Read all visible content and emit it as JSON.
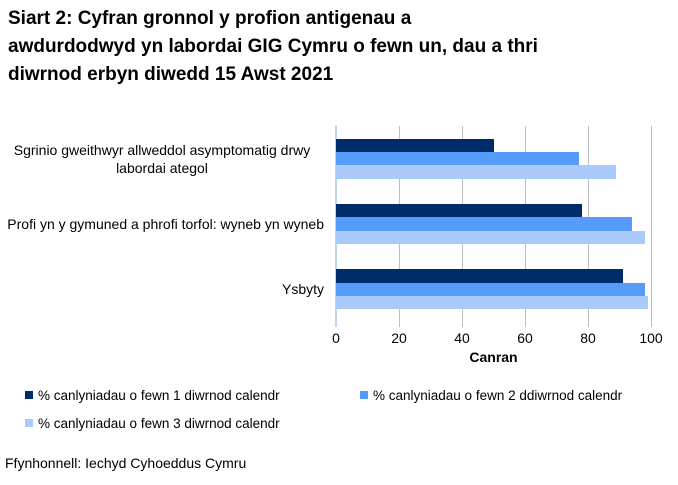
{
  "title": "Siart 2: Cyfran gronnol y profion antigenau a awdurdodwyd yn labordai GIG Cymru o fewn un, dau a thri diwrnod erbyn diwedd 15 Awst 2021",
  "source": "Ffynhonnell: Iechyd Cyhoeddus Cymru",
  "chart_data": {
    "type": "bar",
    "orientation": "horizontal",
    "title": "Siart 2: Cyfran gronnol y profion antigenau a awdurdodwyd yn labordai GIG Cymru o fewn un, dau a thri diwrnod erbyn diwedd 15 Awst 2021",
    "categories": [
      "Sgrinio gweithwyr allweddol asymptomatig drwy labordai ategol",
      "Profi yn y gymuned a phrofi torfol: wyneb yn wyneb",
      "Ysbyty"
    ],
    "series": [
      {
        "name": "% canlyniadau o fewn 1 diwrnod calendr",
        "color": "#002d6a",
        "values": [
          50,
          78,
          91
        ]
      },
      {
        "name": "% canlyniadau o fewn 2 ddiwrnod calendr",
        "color": "#559bfa",
        "values": [
          77,
          94,
          98
        ]
      },
      {
        "name": "% canlyniadau o fewn 3 diwrnod calendr",
        "color": "#aacbfa",
        "values": [
          89,
          98,
          99
        ]
      }
    ],
    "xlabel": "Canran",
    "ylabel": "",
    "xlim": [
      0,
      100
    ],
    "xticks": [
      0,
      20,
      40,
      60,
      80,
      100
    ],
    "grid": true,
    "legend_position": "bottom"
  },
  "colors": {
    "background": "#ffffff",
    "gridline": "#bfbfbf",
    "axis_line": "#bdd7ee",
    "text": "#000000"
  }
}
